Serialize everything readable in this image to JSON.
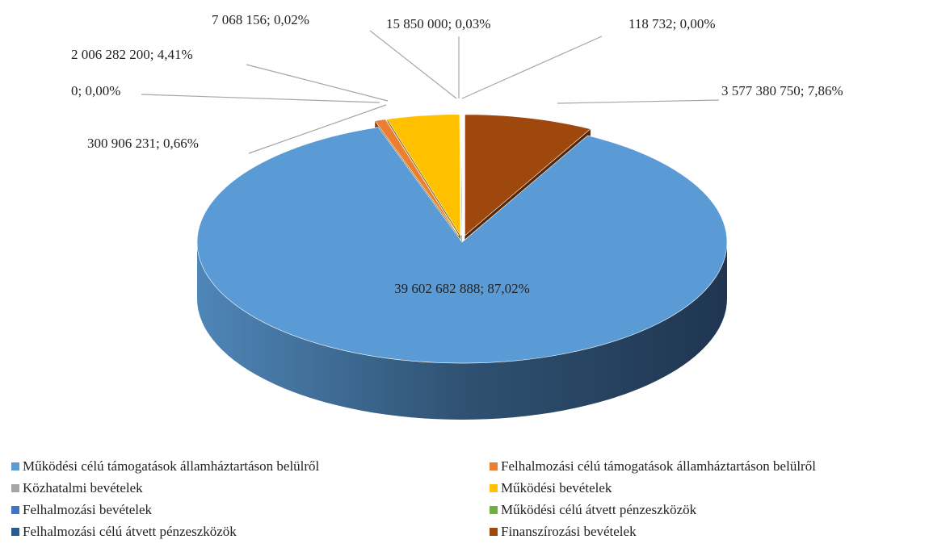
{
  "chart_data": {
    "type": "pie",
    "categories": [
      "Működési célú támogatások államháztartáson belülről",
      "Felhalmozási célú támogatások államháztartáson belülről",
      "Közhatalmi bevételek",
      "Működési bevételek",
      "Felhalmozási bevételek",
      "Működési célú átvett pénzeszközök",
      "Felhalmozási célú átvett pénzeszközök",
      "Finanszírozási bevételek"
    ],
    "values": [
      39602682888,
      300906231,
      0,
      2006282200,
      7068156,
      15850000,
      118732,
      3577380750
    ],
    "value_labels": [
      "39 602 682 888; 87,02%",
      "300 906 231; 0,66%",
      "0; 0,00%",
      "2 006 282 200; 4,41%",
      "7 068 156; 0,02%",
      "15 850 000; 0,03%",
      "118 732; 0,00%",
      "3 577 380 750; 7,86%"
    ],
    "colors": [
      "#5b9bd5",
      "#ed7d31",
      "#a5a5a5",
      "#ffc000",
      "#4472c4",
      "#70ad47",
      "#255e91",
      "#9e480e"
    ],
    "legend": "bottom"
  }
}
